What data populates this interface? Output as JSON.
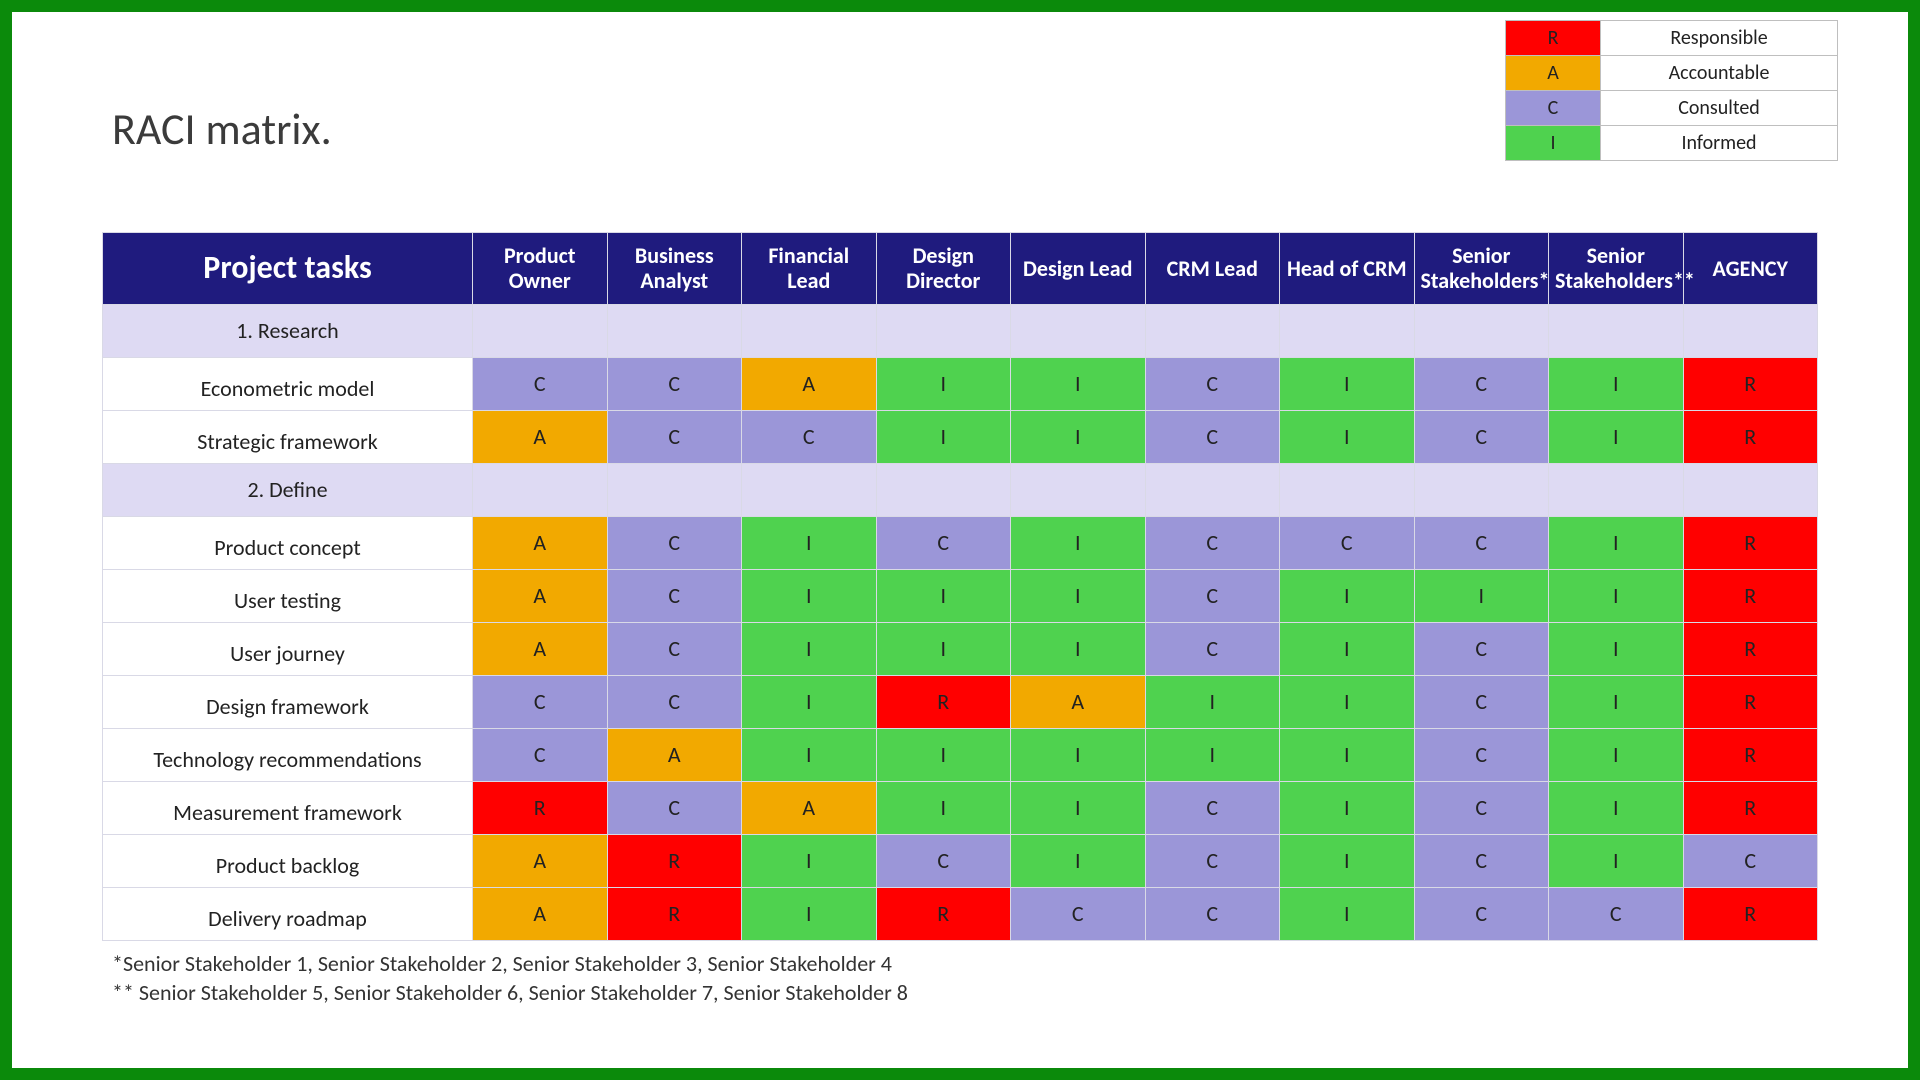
{
  "title": "RACI matrix.",
  "colors": {
    "frame_border": "#0b8a0b",
    "header_bg": "#1f1b7e",
    "section_bg": "#dedaf3",
    "R": "#ff0000",
    "A": "#f2a900",
    "C": "#9b96d8",
    "I": "#4fd24f",
    "cell_border": "#d9d9e6",
    "legend_border": "#bfbfbf"
  },
  "legend": [
    {
      "code": "R",
      "label": "Responsible"
    },
    {
      "code": "A",
      "label": "Accountable"
    },
    {
      "code": "C",
      "label": "Consulted"
    },
    {
      "code": "I",
      "label": "Informed"
    }
  ],
  "tasks_header": "Project tasks",
  "roles": [
    "Product Owner",
    "Business Analyst",
    "Financial Lead",
    "Design Director",
    "Design Lead",
    "CRM Lead",
    "Head of CRM",
    "Senior Stakeholders*",
    "Senior Stakeholders**",
    "AGENCY"
  ],
  "rows": [
    {
      "type": "section",
      "label": "1. Research"
    },
    {
      "type": "task",
      "label": "Econometric model",
      "cells": [
        "C",
        "C",
        "A",
        "I",
        "I",
        "C",
        "I",
        "C",
        "I",
        "R"
      ]
    },
    {
      "type": "task",
      "label": "Strategic framework",
      "cells": [
        "A",
        "C",
        "C",
        "I",
        "I",
        "C",
        "I",
        "C",
        "I",
        "R"
      ]
    },
    {
      "type": "section",
      "label": "2. Define"
    },
    {
      "type": "task",
      "label": "Product concept",
      "cells": [
        "A",
        "C",
        "I",
        "C",
        "I",
        "C",
        "C",
        "C",
        "I",
        "R"
      ]
    },
    {
      "type": "task",
      "label": "User testing",
      "cells": [
        "A",
        "C",
        "I",
        "I",
        "I",
        "C",
        "I",
        "I",
        "I",
        "R"
      ]
    },
    {
      "type": "task",
      "label": "User journey",
      "cells": [
        "A",
        "C",
        "I",
        "I",
        "I",
        "C",
        "I",
        "C",
        "I",
        "R"
      ]
    },
    {
      "type": "task",
      "label": "Design framework",
      "cells": [
        "C",
        "C",
        "I",
        "R",
        "A",
        "I",
        "I",
        "C",
        "I",
        "R"
      ]
    },
    {
      "type": "task",
      "label": "Technology recommendations",
      "cells": [
        "C",
        "A",
        "I",
        "I",
        "I",
        "I",
        "I",
        "C",
        "I",
        "R"
      ]
    },
    {
      "type": "task",
      "label": "Measurement framework",
      "cells": [
        "R",
        "C",
        "A",
        "I",
        "I",
        "C",
        "I",
        "C",
        "I",
        "R"
      ]
    },
    {
      "type": "task",
      "label": "Product backlog",
      "cells": [
        "A",
        "R",
        "I",
        "C",
        "I",
        "C",
        "I",
        "C",
        "I",
        "C"
      ]
    },
    {
      "type": "task",
      "label": "Delivery roadmap",
      "cells": [
        "A",
        "R",
        "I",
        "R",
        "C",
        "C",
        "I",
        "C",
        "C",
        "R"
      ]
    }
  ],
  "footnotes": [
    "*Senior Stakeholder 1, Senior Stakeholder 2, Senior Stakeholder 3, Senior Stakeholder 4",
    "** Senior Stakeholder 5, Senior Stakeholder 6, Senior Stakeholder 7, Senior Stakeholder 8"
  ]
}
